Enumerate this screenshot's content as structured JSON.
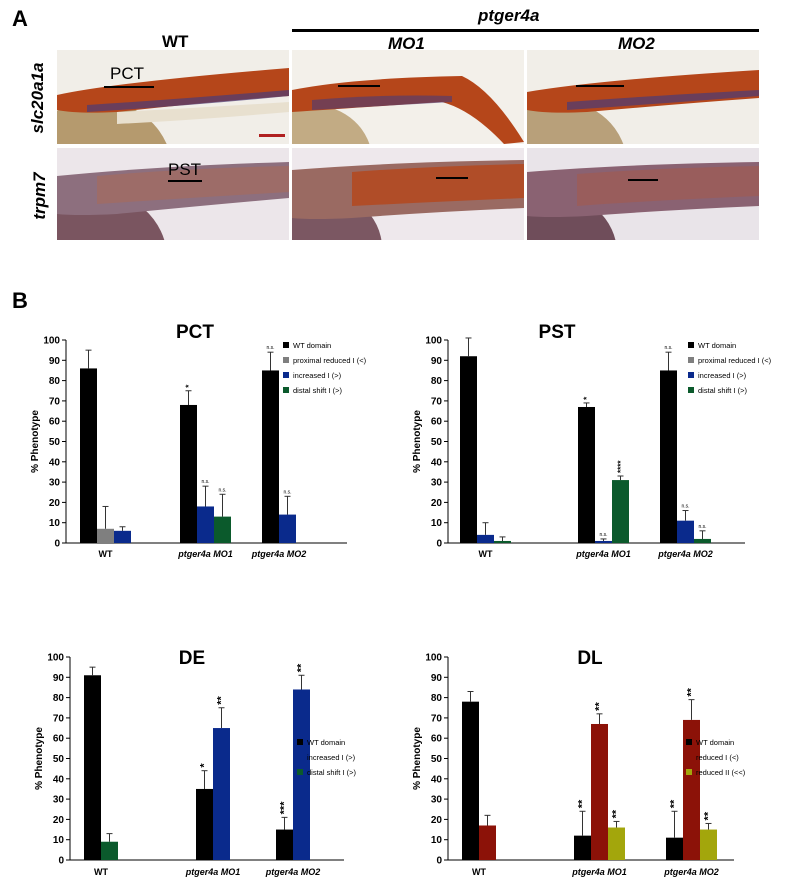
{
  "panel_a": {
    "letter": "A",
    "group_label": "ptger4a",
    "columns": [
      "WT",
      "MO1",
      "MO2"
    ],
    "rows": [
      "slc20a1a",
      "trpm7"
    ],
    "segment_labels": [
      "PCT",
      "PST"
    ]
  },
  "panel_b": {
    "letter": "B"
  },
  "colors": {
    "wt_domain": "#000000",
    "proximal_reduced": "#7f7f7f",
    "increased": "#0a2a8c",
    "distal_shift": "#0b5a2c",
    "reduced_dl": "#8c1208",
    "reduced_ii": "#a3a60c",
    "stain_red": "#b5461a",
    "stain_purple": "#4a3a78"
  },
  "chart_data": [
    {
      "type": "bar",
      "title": "PCT",
      "ylabel": "% Phenotype",
      "ylim": [
        0,
        100
      ],
      "yticks": [
        "0",
        "10",
        "20",
        "30",
        "40",
        "50",
        "60",
        "70",
        "80",
        "90",
        "100"
      ],
      "categories": [
        "WT",
        "ptger4a MO1",
        "ptger4a MO2"
      ],
      "series": [
        {
          "name": "WT domain",
          "color_key": "wt_domain",
          "values": [
            86,
            68,
            85
          ],
          "errors": [
            9,
            7,
            9
          ],
          "sig": [
            "",
            "*",
            "n.s."
          ]
        },
        {
          "name": "proximal reduced I (<)",
          "color_key": "proximal_reduced",
          "values": [
            7,
            null,
            null
          ],
          "errors": [
            11,
            null,
            null
          ],
          "sig": [
            "",
            "",
            ""
          ]
        },
        {
          "name": "increased I (>)",
          "color_key": "increased",
          "values": [
            6,
            18,
            14
          ],
          "errors": [
            2,
            10,
            9
          ],
          "sig": [
            "",
            "n.s.",
            "n.s."
          ]
        },
        {
          "name": "distal shift I (>)",
          "color_key": "distal_shift",
          "values": [
            null,
            13,
            null
          ],
          "errors": [
            null,
            11,
            null
          ],
          "sig": [
            "",
            "n.s.",
            ""
          ]
        }
      ]
    },
    {
      "type": "bar",
      "title": "PST",
      "ylabel": "% Phenotype",
      "ylim": [
        0,
        100
      ],
      "yticks": [
        "0",
        "10",
        "20",
        "30",
        "40",
        "50",
        "60",
        "70",
        "80",
        "90",
        "100"
      ],
      "categories": [
        "WT",
        "ptger4a MO1",
        "ptger4a MO2"
      ],
      "series": [
        {
          "name": "WT domain",
          "color_key": "wt_domain",
          "values": [
            92,
            67,
            85
          ],
          "errors": [
            9,
            2,
            9
          ],
          "sig": [
            "",
            "*",
            "n.s."
          ]
        },
        {
          "name": "proximal reduced I (<)",
          "color_key": "proximal_reduced",
          "values": [
            null,
            null,
            null
          ],
          "errors": [
            null,
            null,
            null
          ],
          "sig": [
            "",
            "",
            ""
          ]
        },
        {
          "name": "increased I (>)",
          "color_key": "increased",
          "values": [
            4,
            1,
            11
          ],
          "errors": [
            6,
            1,
            5
          ],
          "sig": [
            "",
            "n.s.",
            "n.s."
          ]
        },
        {
          "name": "distal shift I (>)",
          "color_key": "distal_shift",
          "values": [
            1,
            31,
            2
          ],
          "errors": [
            2,
            2,
            4
          ],
          "sig": [
            "",
            "****",
            "n.s."
          ]
        }
      ]
    },
    {
      "type": "bar",
      "title": "DE",
      "ylabel": "% Phenotype",
      "ylim": [
        0,
        100
      ],
      "yticks": [
        "0",
        "10",
        "20",
        "30",
        "40",
        "50",
        "60",
        "70",
        "80",
        "90",
        "100"
      ],
      "categories": [
        "WT",
        "ptger4a MO1",
        "ptger4a MO2"
      ],
      "series": [
        {
          "name": "WT domain",
          "color_key": "wt_domain",
          "values": [
            91,
            35,
            15
          ],
          "errors": [
            4,
            9,
            6
          ],
          "sig": [
            "",
            "*",
            "***"
          ]
        },
        {
          "name": "increased I (>)",
          "color_key": "increased",
          "values": [
            null,
            65,
            84
          ],
          "errors": [
            null,
            10,
            7
          ],
          "sig": [
            "",
            "**",
            "**"
          ]
        },
        {
          "name": "distal shift I (>)",
          "color_key": "distal_shift",
          "values": [
            9,
            null,
            null
          ],
          "errors": [
            4,
            null,
            null
          ],
          "sig": [
            "",
            "",
            ""
          ]
        }
      ]
    },
    {
      "type": "bar",
      "title": "DL",
      "ylabel": "% Phenotype",
      "ylim": [
        0,
        100
      ],
      "yticks": [
        "0",
        "10",
        "20",
        "30",
        "40",
        "50",
        "60",
        "70",
        "80",
        "90",
        "100"
      ],
      "categories": [
        "WT",
        "ptger4a MO1",
        "ptger4a MO2"
      ],
      "series": [
        {
          "name": "WT domain",
          "color_key": "wt_domain",
          "values": [
            78,
            12,
            11
          ],
          "errors": [
            5,
            12,
            13
          ],
          "sig": [
            "",
            "**",
            "**"
          ]
        },
        {
          "name": "reduced I (<)",
          "color_key": "reduced_dl",
          "values": [
            17,
            67,
            69
          ],
          "errors": [
            5,
            5,
            10
          ],
          "sig": [
            "",
            "**",
            "**"
          ]
        },
        {
          "name": "reduced II (<<)",
          "color_key": "reduced_ii",
          "values": [
            null,
            16,
            15
          ],
          "errors": [
            null,
            3,
            3
          ],
          "sig": [
            "",
            "**",
            "**"
          ]
        }
      ]
    }
  ]
}
